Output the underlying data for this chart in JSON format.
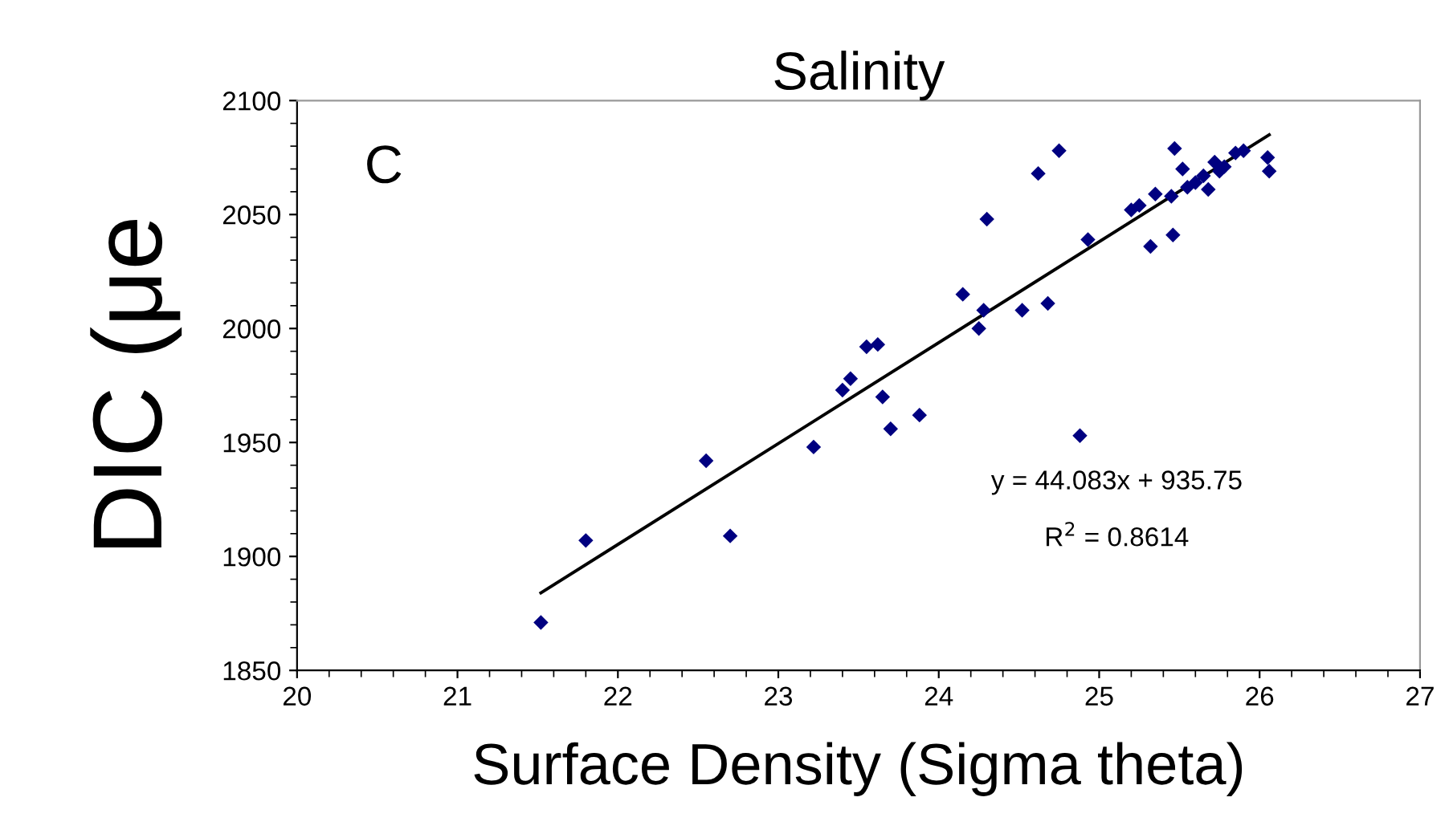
{
  "chart_data": {
    "type": "scatter",
    "title": "Salinity",
    "xlabel": "Surface Density (Sigma theta)",
    "ylabel": "DIC (μe",
    "annotations": [
      "C",
      "y = 44.083x + 935.75",
      "R$^{2}$ = 0.8614"
    ],
    "xlim": [
      20,
      27
    ],
    "xticks": [
      20,
      21,
      22,
      23,
      24,
      25,
      26,
      27
    ],
    "ylim": [
      1850,
      2100
    ],
    "yticks": [
      1850,
      1900,
      1950,
      2000,
      2050,
      2100
    ],
    "grid": false,
    "series": [
      {
        "marker": "diamond",
        "color": "#000080",
        "x": [
          21.52,
          21.8,
          22.55,
          22.7,
          23.22,
          23.4,
          23.45,
          23.55,
          23.62,
          23.65,
          23.7,
          23.88,
          24.15,
          24.25,
          24.28,
          24.3,
          24.52,
          24.62,
          24.68,
          24.75,
          24.88,
          24.93,
          25.2,
          25.25,
          25.32,
          25.35,
          25.45,
          25.46,
          25.47,
          25.52,
          25.55,
          25.6,
          25.65,
          25.68,
          25.72,
          25.75,
          25.78,
          25.85,
          25.9,
          26.05,
          26.06
        ],
        "values": [
          1871,
          1907,
          1942,
          1909,
          1948,
          1973,
          1978,
          1992,
          1993,
          1970,
          1956,
          1962,
          2015,
          2000,
          2008,
          2048,
          2008,
          2068,
          2011,
          2078,
          1953,
          2039,
          2052,
          2054,
          2036,
          2059,
          2058,
          2041,
          2079,
          2070,
          2062,
          2064,
          2067,
          2061,
          2073,
          2069,
          2071,
          2077,
          2078,
          2075,
          2069
        ]
      },
      {
        "type": "line",
        "color": "#000000",
        "x": [
          21.52,
          26.06
        ],
        "values": [
          1884,
          2085
        ]
      }
    ]
  }
}
